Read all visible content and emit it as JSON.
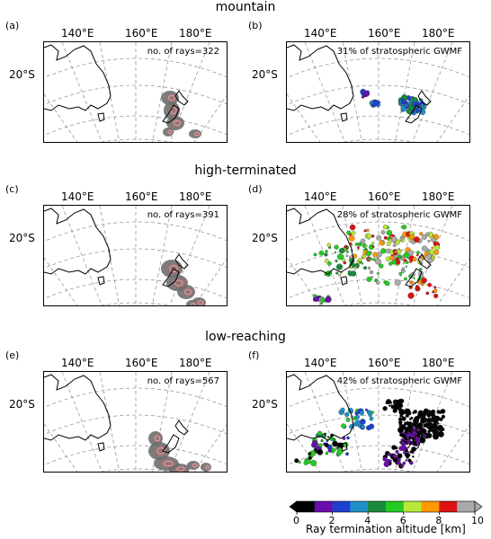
{
  "rows": [
    {
      "title": "mountain",
      "left": {
        "label": "(a)",
        "note": "no. of rays=322",
        "kind": "density",
        "lons": [
          "140°E",
          "160°E",
          "180°E"
        ],
        "lat": "20°S"
      },
      "right": {
        "label": "(b)",
        "note": "31% of stratospheric GWMF",
        "kind": "scatter",
        "lons": [
          "140°E",
          "160°E",
          "180°E"
        ],
        "lat": "20°S"
      }
    },
    {
      "title": "high-terminated",
      "left": {
        "label": "(c)",
        "note": "no. of rays=391",
        "kind": "density",
        "lons": [
          "140°E",
          "160°E",
          "180°E"
        ],
        "lat": "20°S"
      },
      "right": {
        "label": "(d)",
        "note": "28% of stratospheric GWMF",
        "kind": "scatter",
        "lons": [
          "140°E",
          "160°E",
          "180°E"
        ],
        "lat": "20°S"
      }
    },
    {
      "title": "low-reaching",
      "left": {
        "label": "(e)",
        "note": "no. of rays=567",
        "kind": "density",
        "lons": [
          "140°E",
          "160°E",
          "180°E"
        ],
        "lat": "20°S"
      },
      "right": {
        "label": "(f)",
        "note": "42% of stratospheric GWMF",
        "kind": "scatter",
        "lons": [
          "140°E",
          "160°E",
          "180°E"
        ],
        "lat": "20°S"
      }
    }
  ],
  "colorbar": {
    "label": "Ray termination altitude [km]",
    "ticks": [
      "0",
      "2",
      "4",
      "6",
      "8",
      "10"
    ],
    "colors": [
      "#000000",
      "#6a0dad",
      "#1f3fd0",
      "#1e90c8",
      "#1a8a3a",
      "#22cc22",
      "#b8e83a",
      "#ff9900",
      "#dd1111",
      "#aaaaaa"
    ]
  }
}
